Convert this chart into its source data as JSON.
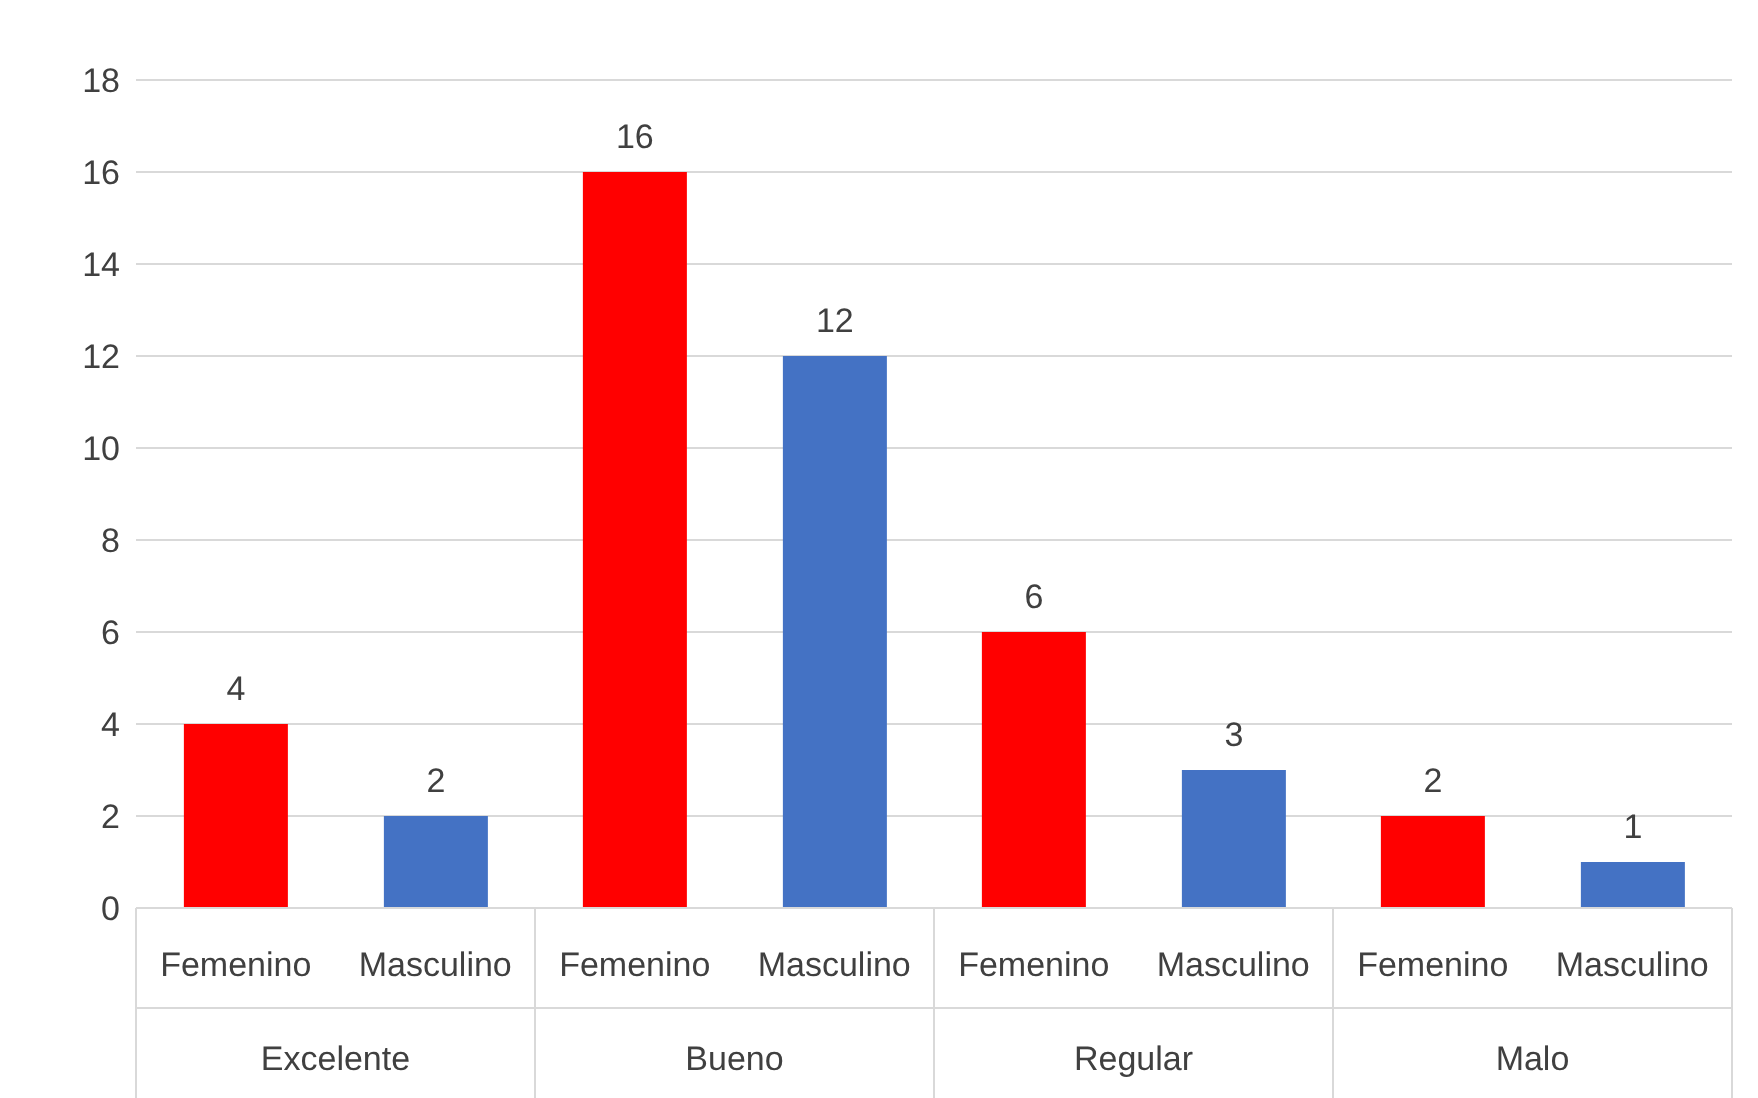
{
  "chart_data": {
    "type": "bar",
    "categories": [
      "Excelente",
      "Bueno",
      "Regular",
      "Malo"
    ],
    "series": [
      {
        "name": "Femenino",
        "color": "#ff0000",
        "values": [
          4,
          16,
          6,
          2
        ]
      },
      {
        "name": "Masculino",
        "color": "#4472c4",
        "values": [
          2,
          12,
          3,
          1
        ]
      }
    ],
    "ylim": [
      0,
      18
    ],
    "yticks": [
      0,
      2,
      4,
      6,
      8,
      10,
      12,
      14,
      16,
      18
    ],
    "grid": "y",
    "legend": false,
    "data_labels": true
  }
}
